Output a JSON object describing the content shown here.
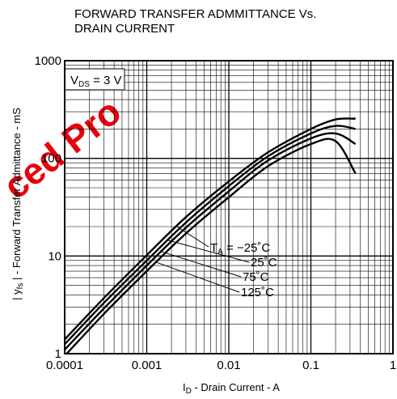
{
  "chart_data": {
    "type": "line",
    "title": "FORWARD TRANSFER ADMMITTANCE Vs. DRAIN CURRENT",
    "title_lines": [
      "FORWARD TRANSFER ADMMITTANCE Vs.",
      "DRAIN CURRENT"
    ],
    "xlabel": {
      "pre": "I",
      "sub": "D",
      "post": " - Drain Current - A"
    },
    "ylabel": {
      "pre": "| y",
      "sub": "fs",
      "post": " | - Forward Transfer Admittance - mS"
    },
    "x_scale": "log",
    "y_scale": "log",
    "xlim": [
      0.0001,
      1
    ],
    "ylim": [
      1,
      1000
    ],
    "x_ticks": [
      {
        "value": 0.0001,
        "label": "0.0001"
      },
      {
        "value": 0.001,
        "label": "0.001"
      },
      {
        "value": 0.01,
        "label": "0.01"
      },
      {
        "value": 0.1,
        "label": "0.1"
      },
      {
        "value": 1,
        "label": "1"
      }
    ],
    "y_ticks": [
      {
        "value": 1,
        "label": "1"
      },
      {
        "value": 10,
        "label": "10"
      },
      {
        "value": 100,
        "label": "100"
      },
      {
        "value": 1000,
        "label": "1000"
      }
    ],
    "grid": true,
    "condition": {
      "pre": "V",
      "sub": "DS",
      "post": " = 3 V"
    },
    "series_header": {
      "pre": "T",
      "sub": "A",
      "post": " = −25˚C"
    },
    "series": [
      {
        "name": "−25˚C",
        "label": "",
        "x": [
          0.0001,
          0.0003,
          0.001,
          0.003,
          0.01,
          0.03,
          0.1,
          0.2,
          0.35
        ],
        "y": [
          1.4,
          3.7,
          10.2,
          25,
          58,
          115,
          200,
          250,
          255
        ]
      },
      {
        "name": "25˚C",
        "label": "25˚C",
        "x": [
          0.0001,
          0.0003,
          0.001,
          0.003,
          0.01,
          0.03,
          0.1,
          0.2,
          0.35
        ],
        "y": [
          1.25,
          3.3,
          9,
          22,
          52,
          105,
          180,
          215,
          200
        ]
      },
      {
        "name": "75˚C",
        "label": "75˚C",
        "x": [
          0.0001,
          0.0003,
          0.001,
          0.003,
          0.01,
          0.03,
          0.1,
          0.2,
          0.35
        ],
        "y": [
          1.1,
          2.9,
          8,
          19.5,
          46,
          95,
          160,
          180,
          140
        ]
      },
      {
        "name": "125˚C",
        "label": "125˚C",
        "x": [
          0.0001,
          0.0003,
          0.001,
          0.003,
          0.01,
          0.03,
          0.1,
          0.2,
          0.35
        ],
        "y": [
          0.95,
          2.55,
          7,
          17,
          40,
          83,
          140,
          150,
          70
        ]
      }
    ],
    "watermark": "ced Pro"
  }
}
